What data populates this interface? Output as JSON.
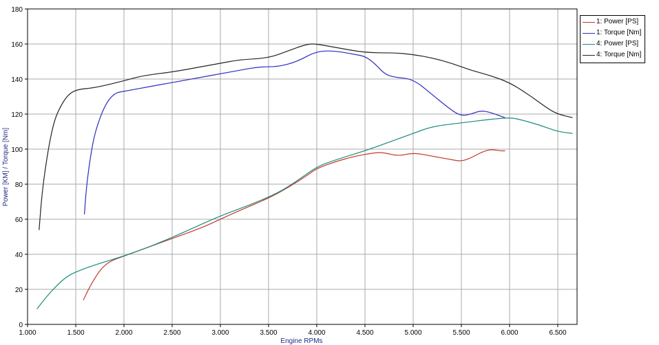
{
  "chart_data": {
    "type": "line",
    "xlabel": "Engine RPMs",
    "ylabel": "Power [KM] / Torque [Nm]",
    "xlim": [
      1000,
      6700
    ],
    "ylim": [
      0,
      180
    ],
    "x_ticks": [
      1000,
      1500,
      2000,
      2500,
      3000,
      3500,
      4000,
      4500,
      5000,
      5500,
      6000,
      6500
    ],
    "x_tick_labels": [
      "1.000",
      "1.500",
      "2.000",
      "2.500",
      "3.000",
      "3.500",
      "4.000",
      "4.500",
      "5.000",
      "5.500",
      "6.000",
      "6.500"
    ],
    "y_ticks": [
      0,
      20,
      40,
      60,
      80,
      100,
      120,
      140,
      160,
      180
    ],
    "y_tick_labels": [
      "0",
      "20",
      "40",
      "60",
      "80",
      "100",
      "120",
      "140",
      "160",
      "180"
    ],
    "grid": true,
    "legend_position": "top-right",
    "series": [
      {
        "name": "1: Power [PS]",
        "color": "#c0392b",
        "points": [
          [
            1580,
            14
          ],
          [
            1650,
            22
          ],
          [
            1750,
            31
          ],
          [
            1850,
            36
          ],
          [
            2000,
            39
          ],
          [
            2200,
            43
          ],
          [
            2500,
            49
          ],
          [
            2800,
            55
          ],
          [
            3000,
            60
          ],
          [
            3200,
            65
          ],
          [
            3500,
            72
          ],
          [
            3700,
            78
          ],
          [
            3900,
            85
          ],
          [
            4000,
            89
          ],
          [
            4200,
            93
          ],
          [
            4400,
            96
          ],
          [
            4600,
            98
          ],
          [
            4700,
            98
          ],
          [
            4850,
            96
          ],
          [
            5000,
            98
          ],
          [
            5200,
            96
          ],
          [
            5400,
            94
          ],
          [
            5500,
            93
          ],
          [
            5600,
            95
          ],
          [
            5700,
            98
          ],
          [
            5800,
            100
          ],
          [
            5900,
            99
          ],
          [
            5950,
            99
          ]
        ]
      },
      {
        "name": "1: Torque [Nm]",
        "color": "#2b2bc0",
        "points": [
          [
            1590,
            63
          ],
          [
            1610,
            78
          ],
          [
            1650,
            95
          ],
          [
            1700,
            110
          ],
          [
            1800,
            125
          ],
          [
            1900,
            132
          ],
          [
            2000,
            133
          ],
          [
            2200,
            135
          ],
          [
            2500,
            138
          ],
          [
            2800,
            141
          ],
          [
            3000,
            143
          ],
          [
            3200,
            145
          ],
          [
            3400,
            147
          ],
          [
            3600,
            147
          ],
          [
            3800,
            150
          ],
          [
            4000,
            156
          ],
          [
            4200,
            156
          ],
          [
            4400,
            154
          ],
          [
            4500,
            153
          ],
          [
            4600,
            149
          ],
          [
            4700,
            143
          ],
          [
            4800,
            141
          ],
          [
            5000,
            140
          ],
          [
            5200,
            131
          ],
          [
            5400,
            122
          ],
          [
            5500,
            119
          ],
          [
            5600,
            120
          ],
          [
            5700,
            122
          ],
          [
            5800,
            121
          ],
          [
            5950,
            118
          ]
        ]
      },
      {
        "name": "4: Power [PS]",
        "color": "#1a8a7a",
        "points": [
          [
            1100,
            9
          ],
          [
            1200,
            16
          ],
          [
            1300,
            22
          ],
          [
            1400,
            27
          ],
          [
            1500,
            30
          ],
          [
            1700,
            34
          ],
          [
            2000,
            39
          ],
          [
            2300,
            45
          ],
          [
            2600,
            52
          ],
          [
            3000,
            62
          ],
          [
            3300,
            68
          ],
          [
            3600,
            75
          ],
          [
            3800,
            82
          ],
          [
            4000,
            90
          ],
          [
            4200,
            94
          ],
          [
            4500,
            99
          ],
          [
            4800,
            105
          ],
          [
            5000,
            109
          ],
          [
            5200,
            113
          ],
          [
            5500,
            115
          ],
          [
            5800,
            117
          ],
          [
            6000,
            118
          ],
          [
            6100,
            117
          ],
          [
            6300,
            114
          ],
          [
            6500,
            110
          ],
          [
            6650,
            109
          ]
        ]
      },
      {
        "name": "4: Torque [Nm]",
        "color": "#222222",
        "points": [
          [
            1120,
            54
          ],
          [
            1150,
            75
          ],
          [
            1200,
            95
          ],
          [
            1250,
            110
          ],
          [
            1300,
            120
          ],
          [
            1400,
            130
          ],
          [
            1500,
            134
          ],
          [
            1700,
            135
          ],
          [
            2000,
            139
          ],
          [
            2200,
            142
          ],
          [
            2500,
            144
          ],
          [
            2800,
            147
          ],
          [
            3000,
            149
          ],
          [
            3200,
            151
          ],
          [
            3500,
            152
          ],
          [
            3700,
            156
          ],
          [
            3900,
            160
          ],
          [
            4000,
            160
          ],
          [
            4200,
            158
          ],
          [
            4500,
            155
          ],
          [
            4800,
            155
          ],
          [
            5000,
            154
          ],
          [
            5200,
            152
          ],
          [
            5400,
            149
          ],
          [
            5600,
            145
          ],
          [
            5800,
            142
          ],
          [
            6000,
            138
          ],
          [
            6200,
            131
          ],
          [
            6400,
            123
          ],
          [
            6500,
            120
          ],
          [
            6650,
            118
          ]
        ]
      }
    ]
  }
}
